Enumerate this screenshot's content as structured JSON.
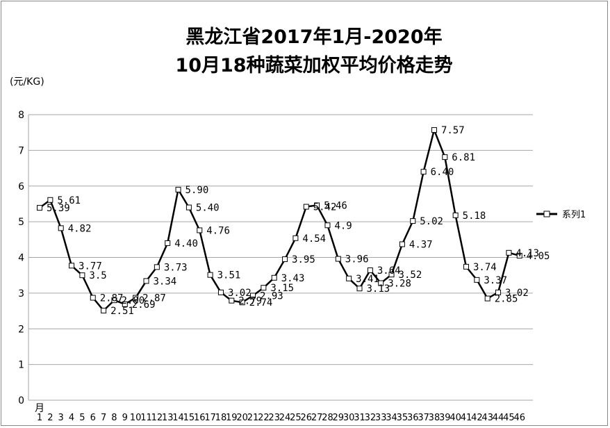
{
  "chart_data": {
    "type": "line",
    "title_lines": [
      "黑龙江省2017年1月-2020年",
      "10月18种蔬菜加权平均价格走势"
    ],
    "ylabel": "(元/KG)",
    "xlabel": "月",
    "ylim": [
      0,
      8
    ],
    "yticks": [
      "0",
      "1",
      "2",
      "3",
      "4",
      "5",
      "6",
      "7",
      "8"
    ],
    "grid": true,
    "legend_position": "right",
    "categories": [
      "1",
      "2",
      "3",
      "4",
      "5",
      "6",
      "7",
      "8",
      "9",
      "10",
      "11",
      "12",
      "13",
      "14",
      "15",
      "16",
      "17",
      "18",
      "19",
      "20",
      "21",
      "22",
      "23",
      "24",
      "25",
      "26",
      "27",
      "28",
      "29",
      "30",
      "31",
      "32",
      "33",
      "34",
      "35",
      "36",
      "37",
      "38",
      "39",
      "40",
      "41",
      "42",
      "43",
      "44",
      "45",
      "46"
    ],
    "series": [
      {
        "name": "系列1",
        "values": [
          5.39,
          5.61,
          4.82,
          3.77,
          3.5,
          2.87,
          2.51,
          2.8,
          2.69,
          2.87,
          3.34,
          3.73,
          4.4,
          5.9,
          5.4,
          4.76,
          3.51,
          3.02,
          2.79,
          2.74,
          2.93,
          3.15,
          3.43,
          3.95,
          4.54,
          5.42,
          5.46,
          4.9,
          3.96,
          3.41,
          3.13,
          3.64,
          3.28,
          3.52,
          4.37,
          5.02,
          6.4,
          7.57,
          6.81,
          5.18,
          3.74,
          3.37,
          2.85,
          3.02,
          4.13,
          4.05
        ],
        "labels": [
          "5.39",
          "5.61",
          "4.82",
          "3.77",
          "3.5",
          "2.87",
          "2.51",
          "2.80",
          "2.69",
          "2.87",
          "3.34",
          "3.73",
          "4.40",
          "5.90",
          "5.40",
          "4.76",
          "3.51",
          "3.02",
          "2.79",
          "2.74",
          "2.93",
          "3.15",
          "3.43",
          "3.95",
          "4.54",
          "5.42",
          "5.46",
          "4.9",
          "3.96",
          "3.41",
          "3.13",
          "3.64",
          "3.28",
          "3.52",
          "4.37",
          "5.02",
          "6.40",
          "7.57",
          "6.81",
          "5.18",
          "3.74",
          "3.37",
          "2.85",
          "3.02",
          "4.13",
          "4.05"
        ],
        "color": "#000000"
      }
    ]
  }
}
